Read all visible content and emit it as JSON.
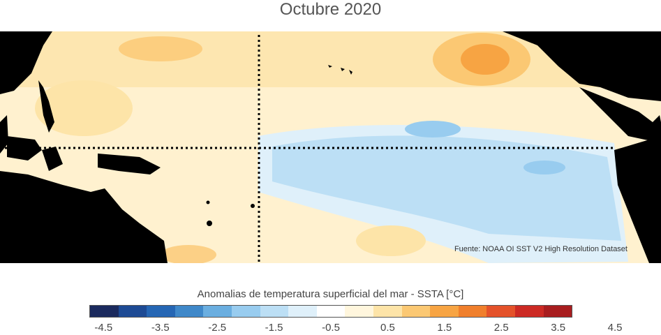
{
  "title": "Octubre 2020",
  "credit": "Fuente: NOAA OI SST V2 High Resolution Dataset",
  "colorbar": {
    "label": "Anomalias de temperatura superficial del mar - SSTA  [°C]",
    "tick_labels": [
      "-4.5",
      "-3.5",
      "-2.5",
      "-1.5",
      "-0.5",
      "0.5",
      "1.5",
      "2.5",
      "3.5",
      "4.5"
    ],
    "colors": [
      "#1b2a5e",
      "#1d4a94",
      "#2566b4",
      "#3f88c9",
      "#6aaee0",
      "#98ccef",
      "#bcdff5",
      "#dff0fa",
      "#ffffff",
      "#fff6dd",
      "#fde4a8",
      "#fbc873",
      "#f7a443",
      "#f07f2c",
      "#e4522a",
      "#cc2a24",
      "#a81d1f"
    ]
  },
  "map": {
    "region": "Pacífico tropical",
    "reference_lines": [
      "equator-dotted-line",
      "dateline-dotted-line"
    ],
    "land_color": "#000000"
  }
}
